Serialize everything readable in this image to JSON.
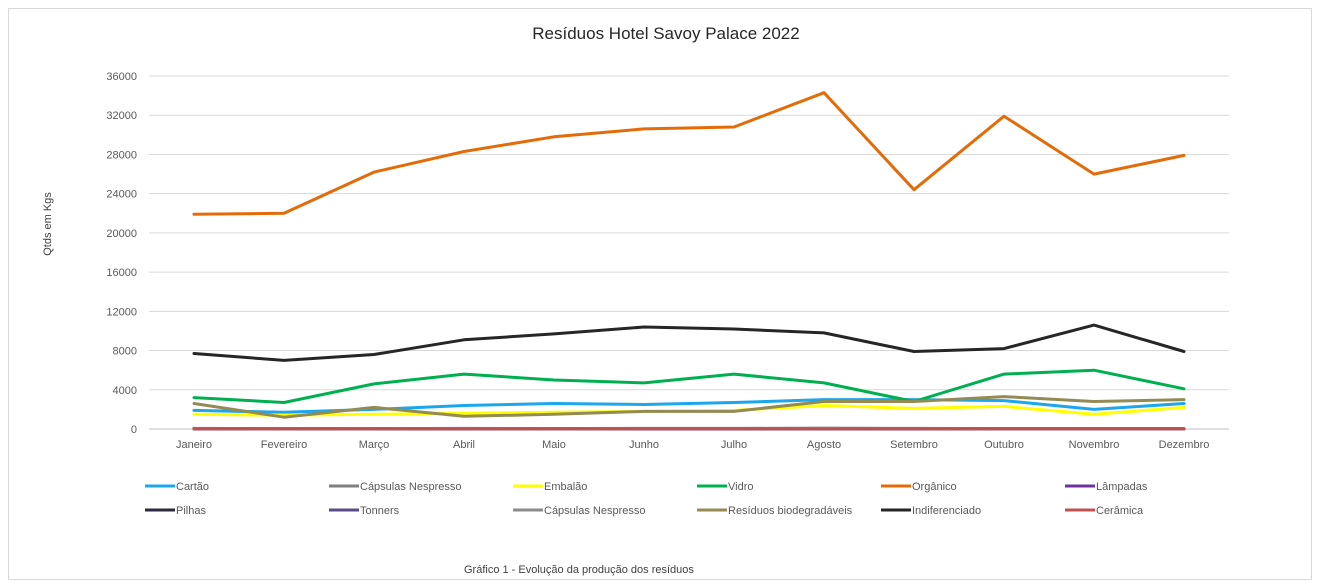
{
  "chart_data": {
    "type": "line",
    "title": "Resíduos Hotel Savoy Palace 2022",
    "xlabel": "",
    "ylabel": "Qtds em Kgs",
    "caption": "Gráfico 1 - Evolução da produção dos resíduos",
    "categories": [
      "Janeiro",
      "Fevereiro",
      "Março",
      "Abril",
      "Maio",
      "Junho",
      "Julho",
      "Agosto",
      "Setembro",
      "Outubro",
      "Novembro",
      "Dezembro"
    ],
    "yticks": [
      "0",
      "4000",
      "8000",
      "12000",
      "16000",
      "20000",
      "24000",
      "28000",
      "32000",
      "36000"
    ],
    "ylim": [
      0,
      36000
    ],
    "grid": true,
    "legend_position": "bottom",
    "series": [
      {
        "name": "Cartão",
        "color": "#1ca7ec",
        "values": [
          1900,
          1700,
          2000,
          2400,
          2600,
          2500,
          2700,
          3000,
          3000,
          2900,
          2000,
          2600
        ]
      },
      {
        "name": "Cápsulas Nespresso",
        "color": "#7f7f7f",
        "values": [
          60,
          30,
          40,
          60,
          40,
          60,
          60,
          80,
          60,
          40,
          40,
          40
        ]
      },
      {
        "name": "Embalão",
        "color": "#ffff00",
        "values": [
          1500,
          1400,
          1500,
          1600,
          1700,
          1800,
          1900,
          2400,
          2100,
          2300,
          1500,
          2200
        ]
      },
      {
        "name": "Vidro",
        "color": "#00b050",
        "values": [
          3200,
          2700,
          4600,
          5600,
          5000,
          4700,
          5600,
          4700,
          2800,
          5600,
          6000,
          4100
        ]
      },
      {
        "name": "Orgânico",
        "color": "#e36c09",
        "values": [
          21900,
          22000,
          26200,
          28300,
          29800,
          30600,
          30800,
          34300,
          24400,
          31900,
          26000,
          27900
        ]
      },
      {
        "name": "Lâmpadas",
        "color": "#7030a0",
        "values": [
          10,
          10,
          10,
          10,
          10,
          10,
          10,
          10,
          10,
          10,
          10,
          10
        ]
      },
      {
        "name": "Pilhas",
        "color": "#2e2a3f",
        "values": [
          15,
          15,
          15,
          15,
          15,
          15,
          15,
          15,
          15,
          15,
          15,
          15
        ]
      },
      {
        "name": "Tonners",
        "color": "#5b4b8a",
        "values": [
          5,
          5,
          5,
          5,
          5,
          5,
          5,
          5,
          5,
          5,
          5,
          5
        ]
      },
      {
        "name": "Cápsulas Nespresso",
        "color": "#8c8c8c",
        "values": [
          50,
          20,
          30,
          50,
          30,
          50,
          50,
          70,
          50,
          30,
          30,
          30
        ]
      },
      {
        "name": "Resíduos biodegradáveis",
        "color": "#948a54",
        "values": [
          2600,
          1200,
          2200,
          1300,
          1500,
          1800,
          1800,
          2800,
          2800,
          3300,
          2800,
          3000
        ]
      },
      {
        "name": "Indiferenciado",
        "color": "#262626",
        "values": [
          7700,
          7000,
          7600,
          9100,
          9700,
          10400,
          10200,
          9800,
          7900,
          8200,
          10600,
          7900
        ]
      },
      {
        "name": "Cerâmica",
        "color": "#c0504d",
        "values": [
          20,
          20,
          20,
          20,
          20,
          20,
          20,
          20,
          20,
          20,
          20,
          20
        ]
      }
    ]
  }
}
